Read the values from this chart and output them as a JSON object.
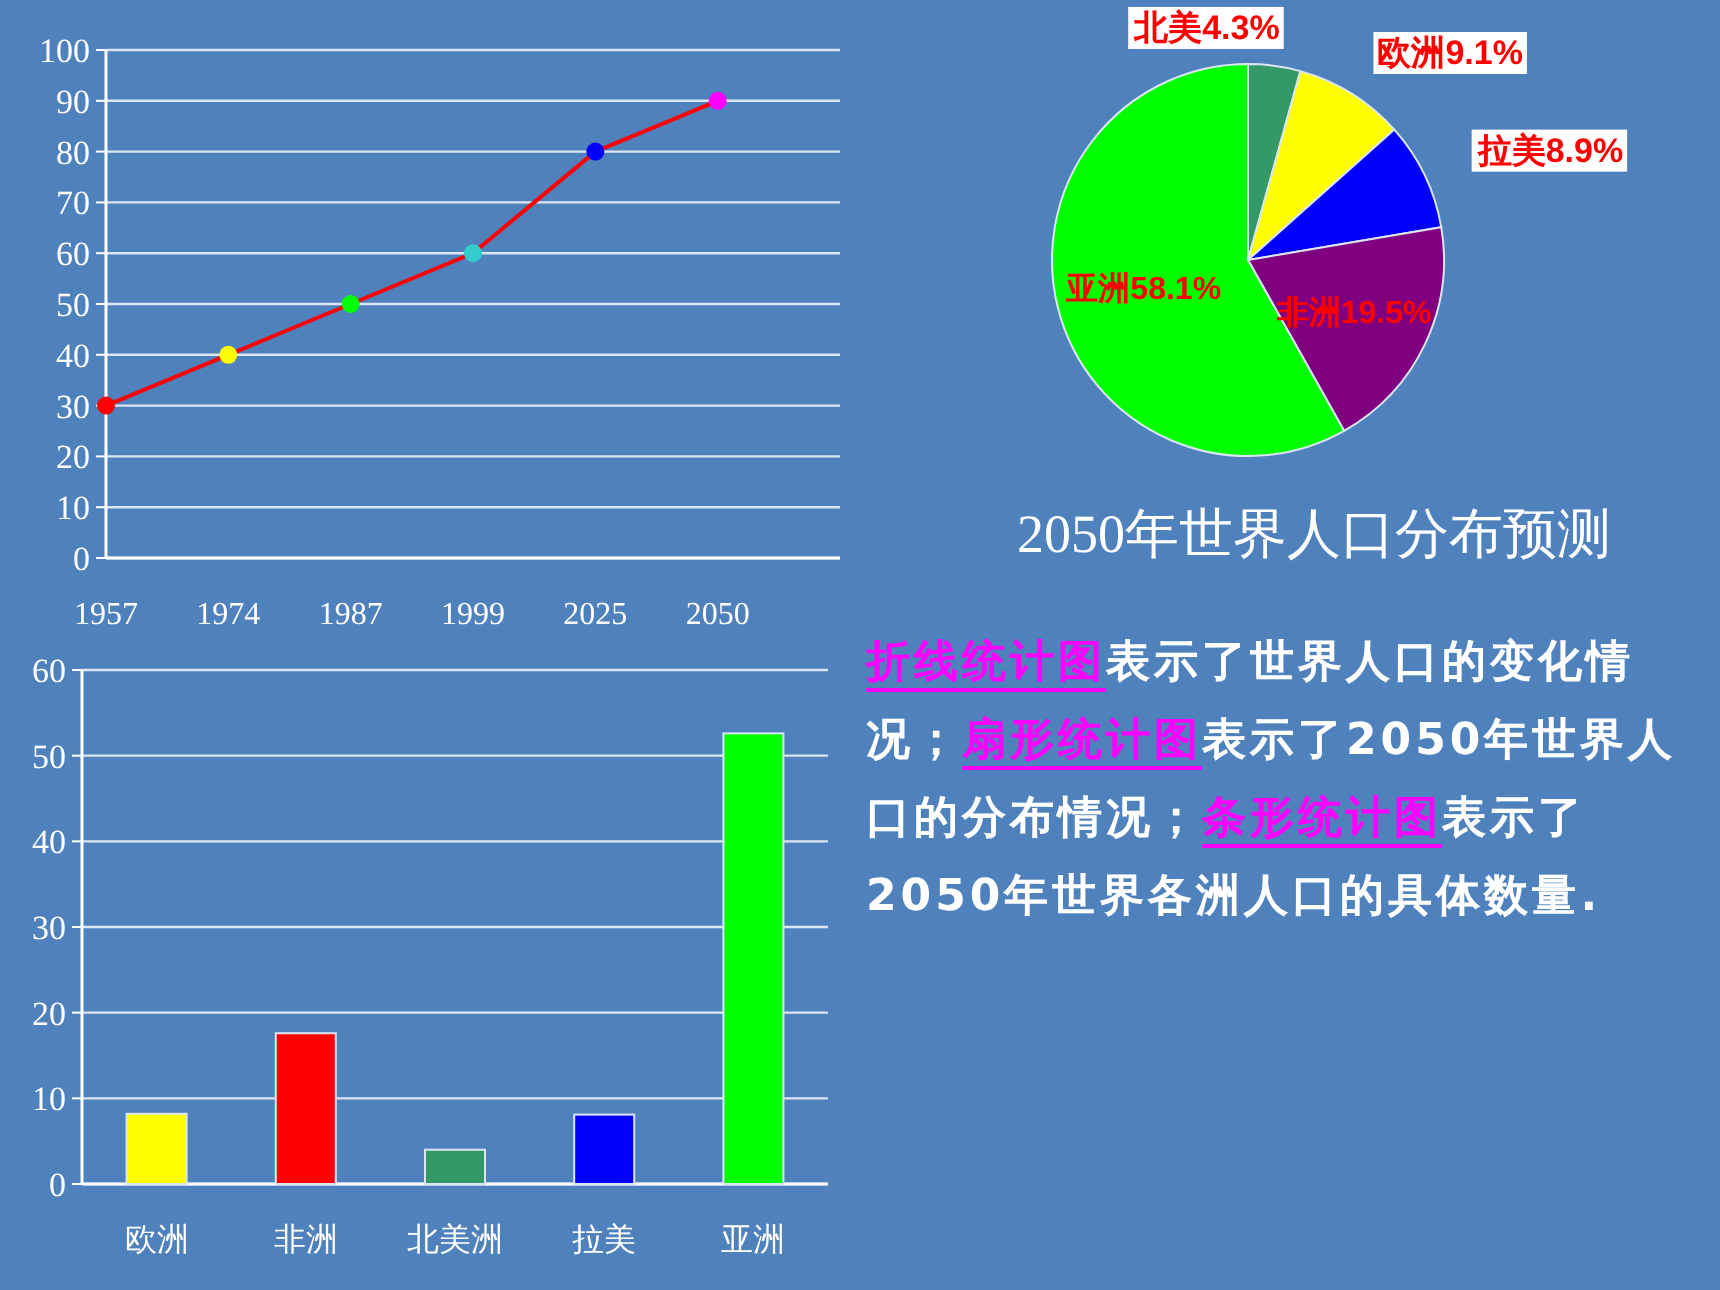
{
  "chart_data": [
    {
      "type": "line",
      "categories": [
        "1957",
        "1974",
        "1987",
        "1999",
        "2025",
        "2050"
      ],
      "series": [
        {
          "color": "#ff0000",
          "colors": [
            "#ff0000",
            "#ffff00",
            "#00ff00",
            "#33cccc",
            "#0000ff",
            "#ff00ff"
          ],
          "values": [
            30,
            40,
            50,
            60,
            80,
            90
          ]
        }
      ],
      "ylim": [
        0,
        100
      ],
      "yticks": [
        0,
        10,
        20,
        30,
        40,
        50,
        60,
        70,
        80,
        90,
        100
      ],
      "grid": "y",
      "marker": "circle"
    },
    {
      "type": "pie",
      "title": "2050年世界人口分布预测",
      "categories": [
        "北美",
        "欧洲",
        "拉美",
        "非洲",
        "亚洲"
      ],
      "values": [
        4.3,
        9.1,
        8.9,
        19.5,
        58.1
      ],
      "value_labels": [
        "4.3%",
        "9.1%",
        "8.9%",
        "19.5%",
        "58.1%"
      ],
      "colors": [
        "#339966",
        "#ffff00",
        "#0000ff",
        "#800080",
        "#00ff00"
      ]
    },
    {
      "type": "bar",
      "categories": [
        "欧洲",
        "非洲",
        "北美洲",
        "拉美",
        "亚洲"
      ],
      "values": [
        8.2,
        17.6,
        4.0,
        8.1,
        52.6
      ],
      "colors": [
        "#ffff00",
        "#ff0000",
        "#339966",
        "#0000ff",
        "#00ff00"
      ],
      "ylim": [
        0,
        60
      ],
      "yticks": [
        0,
        10,
        20,
        30,
        40,
        50,
        60
      ],
      "grid": "y"
    },
    {
      "type": "other",
      "annotations": [
        "折线统计图",
        "表示了世界人口的变化情况；",
        "扇形统计图",
        "表示了2050年世界人口的分布情况；",
        "条形统计图",
        "表示了2050年世界各洲人口的具体数量."
      ]
    }
  ]
}
